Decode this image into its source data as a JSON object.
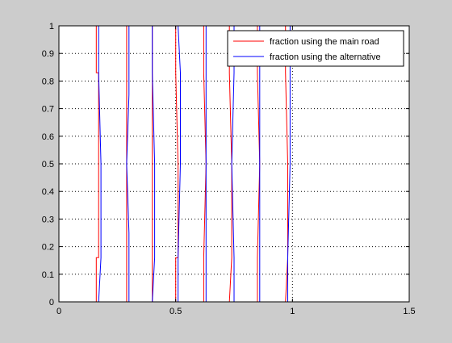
{
  "chart_data": {
    "type": "line",
    "title": "",
    "xlabel": "",
    "ylabel": "",
    "xlim": [
      0,
      1.5
    ],
    "ylim": [
      0,
      1
    ],
    "xticks": [
      0,
      0.5,
      1,
      1.5
    ],
    "xtick_labels": [
      "0",
      "0.5",
      "1",
      "1.5"
    ],
    "yticks": [
      0,
      0.1,
      0.2,
      0.3,
      0.4,
      0.5,
      0.6,
      0.7,
      0.8,
      0.9,
      1
    ],
    "ytick_labels": [
      "0",
      "0.1",
      "0.2",
      "0.3",
      "0.4",
      "0.5",
      "0.6",
      "0.7",
      "0.8",
      "0.9",
      "1"
    ],
    "grid": true,
    "legend_position": "top-right",
    "series": [
      {
        "name": "fraction using the main road",
        "color": "#ff0000",
        "points": [
          [
            0.16,
            0
          ],
          [
            0.16,
            0.16
          ],
          [
            0.17,
            0.16
          ],
          [
            0.17,
            0.5
          ],
          [
            0.17,
            0.83
          ],
          [
            0.16,
            0.83
          ],
          [
            0.16,
            1
          ],
          [
            0.29,
            1
          ],
          [
            0.29,
            0.75
          ],
          [
            0.29,
            0.5
          ],
          [
            0.29,
            0.25
          ],
          [
            0.29,
            0
          ],
          [
            0.4,
            0
          ],
          [
            0.4,
            0.16
          ],
          [
            0.4,
            0.5
          ],
          [
            0.4,
            0.83
          ],
          [
            0.4,
            1
          ],
          [
            0.5,
            1
          ],
          [
            0.5,
            0.83
          ],
          [
            0.51,
            0.5
          ],
          [
            0.51,
            0.16
          ],
          [
            0.5,
            0.16
          ],
          [
            0.5,
            0
          ],
          [
            0.62,
            0
          ],
          [
            0.62,
            0.16
          ],
          [
            0.63,
            0.5
          ],
          [
            0.62,
            0.83
          ],
          [
            0.62,
            1
          ],
          [
            0.73,
            1
          ],
          [
            0.73,
            0.83
          ],
          [
            0.74,
            0.5
          ],
          [
            0.74,
            0.16
          ],
          [
            0.73,
            0
          ],
          [
            0.85,
            0
          ],
          [
            0.85,
            0.16
          ],
          [
            0.86,
            0.5
          ],
          [
            0.85,
            0.83
          ],
          [
            0.85,
            1
          ],
          [
            0.97,
            1
          ],
          [
            0.97,
            0.83
          ],
          [
            0.98,
            0.5
          ],
          [
            0.98,
            0.16
          ],
          [
            0.97,
            0
          ]
        ]
      },
      {
        "name": "fraction using the alternative",
        "color": "#0000ff",
        "points": [
          [
            0.17,
            1
          ],
          [
            0.17,
            0.83
          ],
          [
            0.18,
            0.5
          ],
          [
            0.18,
            0.16
          ],
          [
            0.17,
            0
          ],
          [
            0.3,
            0
          ],
          [
            0.3,
            0.25
          ],
          [
            0.29,
            0.5
          ],
          [
            0.3,
            0.75
          ],
          [
            0.3,
            1
          ],
          [
            0.4,
            1
          ],
          [
            0.4,
            0.83
          ],
          [
            0.41,
            0.5
          ],
          [
            0.41,
            0.16
          ],
          [
            0.4,
            0
          ],
          [
            0.51,
            0
          ],
          [
            0.51,
            0.16
          ],
          [
            0.52,
            0.5
          ],
          [
            0.52,
            0.83
          ],
          [
            0.51,
            1
          ],
          [
            0.63,
            1
          ],
          [
            0.63,
            0.83
          ],
          [
            0.63,
            0.5
          ],
          [
            0.63,
            0.16
          ],
          [
            0.63,
            0
          ],
          [
            0.75,
            0
          ],
          [
            0.75,
            0.16
          ],
          [
            0.74,
            0.5
          ],
          [
            0.75,
            0.83
          ],
          [
            0.75,
            1
          ],
          [
            0.86,
            1
          ],
          [
            0.86,
            0.83
          ],
          [
            0.86,
            0.5
          ],
          [
            0.86,
            0.16
          ],
          [
            0.86,
            0
          ],
          [
            0.98,
            0
          ],
          [
            0.98,
            0.16
          ],
          [
            0.99,
            0.5
          ],
          [
            0.99,
            0.83
          ],
          [
            0.99,
            1
          ]
        ]
      }
    ]
  }
}
